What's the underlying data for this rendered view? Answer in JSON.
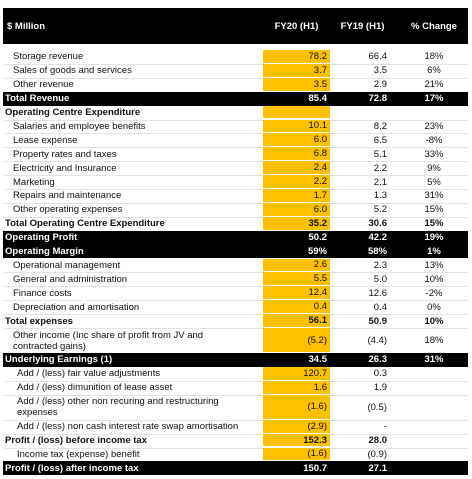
{
  "header": [
    "$ Million",
    "FY20 (H1)",
    "FY19 (H1)",
    "% Change"
  ],
  "rows": [
    [
      "Storage revenue",
      "78.2",
      "66.4",
      "18%"
    ],
    [
      "Sales of goods and services",
      "3.7",
      "3.5",
      "6%"
    ],
    [
      "Other revenue",
      "3.5",
      "2.9",
      "21%"
    ],
    [
      "Total Revenue",
      "85.4",
      "72.8",
      "17%"
    ],
    [
      "Operating Centre Expenditure"
    ],
    [
      "Salaries and employee benefits",
      "10.1",
      "8.2",
      "23%"
    ],
    [
      "Lease expense",
      "6.0",
      "6.5",
      "-8%"
    ],
    [
      "Property rates and taxes",
      "6.8",
      "5.1",
      "33%"
    ],
    [
      "Electricity and Insurance",
      "2.4",
      "2.2",
      "9%"
    ],
    [
      "Marketing",
      "2.2",
      "2.1",
      "5%"
    ],
    [
      "Repairs and maintenance",
      "1.7",
      "1.3",
      "31%"
    ],
    [
      "Other operating expenses",
      "6.0",
      "5.2",
      "15%"
    ],
    [
      "Total Operating Centre Expenditure",
      "35.2",
      "30.6",
      "15%"
    ],
    [
      "Operating Profit",
      "50.2",
      "42.2",
      "19%"
    ],
    [
      "Operating Margin",
      "59%",
      "58%",
      "1%"
    ],
    [
      "Operational management",
      "2.6",
      "2.3",
      "13%"
    ],
    [
      "General and administration",
      "5.5",
      "5.0",
      "10%"
    ],
    [
      "Finance costs",
      "12.4",
      "12.6",
      "-2%"
    ],
    [
      "Depreciation and amortisation",
      "0.4",
      "0.4",
      "0%"
    ],
    [
      "Total expenses",
      "56.1",
      "50.9",
      "10%"
    ],
    [
      "Other income (Inc share of profit from JV and contracted gains)",
      "(5.2)",
      "(4.4)",
      "18%"
    ],
    [
      "Underlying Earnings (1)",
      "34.5",
      "26.3",
      "31%"
    ],
    [
      "Add / (less) fair value adjustments",
      "120.7",
      "0.3"
    ],
    [
      "Add / (less) dimunition of lease asset",
      "1.6",
      "1.9"
    ],
    [
      "Add / (less) other non recuring and restructuring expenses",
      "(1.6)",
      "(0.5)"
    ],
    [
      "Add / (less) non cash interest rate swap amortisation",
      "(2.9)",
      "-"
    ],
    [
      "Profit / (loss) before income tax",
      "152.3",
      "28.0"
    ],
    [
      "Income tax (expense) benefit",
      "(1.6)",
      "(0.9)"
    ],
    [
      "Profit / (loss) after income tax",
      "150.7",
      "27.1"
    ]
  ]
}
